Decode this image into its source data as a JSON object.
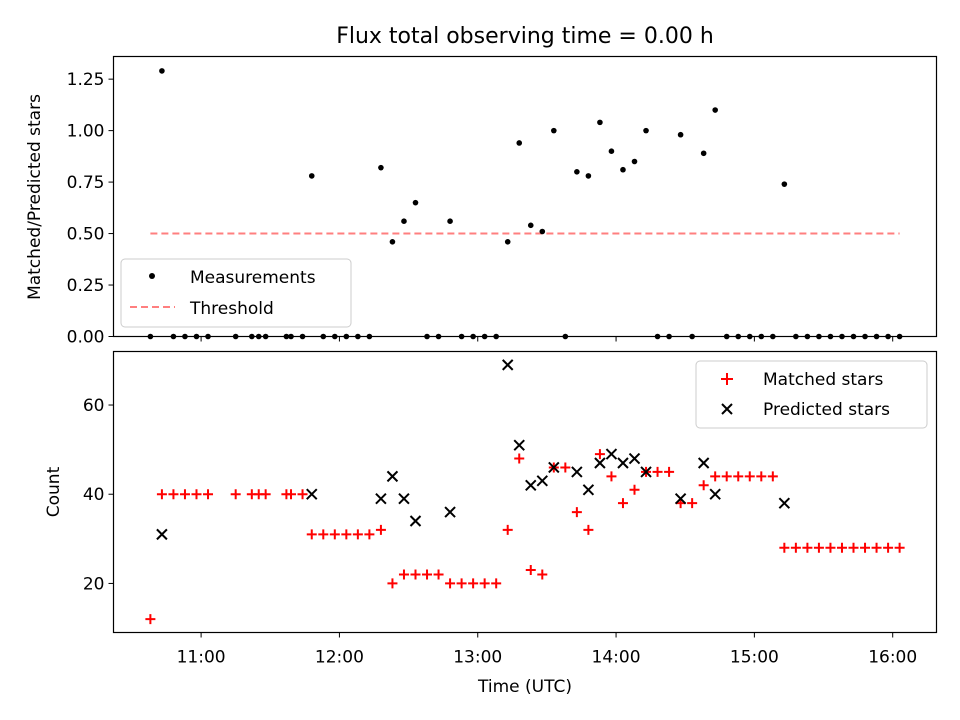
{
  "chart_data": [
    {
      "type": "scatter",
      "title": "Flux total observing time = 0.00 h",
      "xlabel": "",
      "ylabel": "Matched/Predicted stars",
      "ylim": [
        0,
        1.36
      ],
      "yticks": [
        0,
        0.25,
        0.5,
        0.75,
        1.0,
        1.25
      ],
      "ytick_labels": [
        "0.00",
        "0.25",
        "0.50",
        "0.75",
        "1.00",
        "1.25"
      ],
      "grid": false,
      "legend_position": "lower-left",
      "series": [
        {
          "name": "Measurements",
          "marker": "dot",
          "color": "#000000",
          "points": [
            [
              "10:38",
              0
            ],
            [
              "10:43",
              1.29
            ],
            [
              "10:48",
              0
            ],
            [
              "10:53",
              0
            ],
            [
              "10:58",
              0
            ],
            [
              "11:03",
              0
            ],
            [
              "11:15",
              0
            ],
            [
              "11:22",
              0
            ],
            [
              "11:25",
              0
            ],
            [
              "11:28",
              0
            ],
            [
              "11:37",
              0
            ],
            [
              "11:39",
              0
            ],
            [
              "11:44",
              0
            ],
            [
              "11:48",
              0.78
            ],
            [
              "11:53",
              0
            ],
            [
              "11:58",
              0
            ],
            [
              "12:03",
              0
            ],
            [
              "12:08",
              0
            ],
            [
              "12:13",
              0
            ],
            [
              "12:18",
              0.82
            ],
            [
              "12:23",
              0.46
            ],
            [
              "12:28",
              0.56
            ],
            [
              "12:33",
              0.65
            ],
            [
              "12:38",
              0
            ],
            [
              "12:43",
              0
            ],
            [
              "12:48",
              0.56
            ],
            [
              "12:53",
              0
            ],
            [
              "12:58",
              0
            ],
            [
              "13:03",
              0
            ],
            [
              "13:08",
              0
            ],
            [
              "13:13",
              0.46
            ],
            [
              "13:18",
              0.94
            ],
            [
              "13:23",
              0.54
            ],
            [
              "13:28",
              0.51
            ],
            [
              "13:33",
              1.0
            ],
            [
              "13:38",
              0
            ],
            [
              "13:43",
              0.8
            ],
            [
              "13:48",
              0.78
            ],
            [
              "13:53",
              1.04
            ],
            [
              "13:58",
              0.9
            ],
            [
              "14:03",
              0.81
            ],
            [
              "14:08",
              0.85
            ],
            [
              "14:13",
              1.0
            ],
            [
              "14:18",
              0
            ],
            [
              "14:23",
              0
            ],
            [
              "14:28",
              0.98
            ],
            [
              "14:33",
              0
            ],
            [
              "14:38",
              0.89
            ],
            [
              "14:43",
              1.1
            ],
            [
              "14:48",
              0
            ],
            [
              "14:53",
              0
            ],
            [
              "14:58",
              0
            ],
            [
              "15:03",
              0
            ],
            [
              "15:08",
              0
            ],
            [
              "15:13",
              0.74
            ],
            [
              "15:18",
              0
            ],
            [
              "15:23",
              0
            ],
            [
              "15:28",
              0
            ],
            [
              "15:33",
              0
            ],
            [
              "15:38",
              0
            ],
            [
              "15:43",
              0
            ],
            [
              "15:48",
              0
            ],
            [
              "15:53",
              0
            ],
            [
              "15:58",
              0
            ],
            [
              "16:03",
              0
            ]
          ]
        },
        {
          "name": "Threshold",
          "type": "line",
          "dash": true,
          "color": "#ff7f7f",
          "points": [
            [
              "10:38",
              0.5
            ],
            [
              "16:03",
              0.5
            ]
          ]
        }
      ]
    },
    {
      "type": "scatter",
      "title": "",
      "xlabel": "Time (UTC)",
      "ylabel": "Count",
      "ylim": [
        9,
        72
      ],
      "yticks": [
        20,
        40,
        60
      ],
      "ytick_labels": [
        "20",
        "40",
        "60"
      ],
      "xlim": [
        "10:22",
        "16:19"
      ],
      "xticks": [
        "11:00",
        "12:00",
        "13:00",
        "14:00",
        "15:00",
        "16:00"
      ],
      "grid": false,
      "legend_position": "upper-right",
      "series": [
        {
          "name": "Matched stars",
          "marker": "plus",
          "color": "#ff0000",
          "points": [
            [
              "10:38",
              12
            ],
            [
              "10:43",
              40
            ],
            [
              "10:48",
              40
            ],
            [
              "10:53",
              40
            ],
            [
              "10:58",
              40
            ],
            [
              "11:03",
              40
            ],
            [
              "11:15",
              40
            ],
            [
              "11:22",
              40
            ],
            [
              "11:25",
              40
            ],
            [
              "11:28",
              40
            ],
            [
              "11:37",
              40
            ],
            [
              "11:39",
              40
            ],
            [
              "11:44",
              40
            ],
            [
              "11:48",
              31
            ],
            [
              "11:53",
              31
            ],
            [
              "11:58",
              31
            ],
            [
              "12:03",
              31
            ],
            [
              "12:08",
              31
            ],
            [
              "12:13",
              31
            ],
            [
              "12:18",
              32
            ],
            [
              "12:23",
              20
            ],
            [
              "12:28",
              22
            ],
            [
              "12:33",
              22
            ],
            [
              "12:38",
              22
            ],
            [
              "12:43",
              22
            ],
            [
              "12:48",
              20
            ],
            [
              "12:53",
              20
            ],
            [
              "12:58",
              20
            ],
            [
              "13:03",
              20
            ],
            [
              "13:08",
              20
            ],
            [
              "13:13",
              32
            ],
            [
              "13:18",
              48
            ],
            [
              "13:23",
              23
            ],
            [
              "13:28",
              22
            ],
            [
              "13:33",
              46
            ],
            [
              "13:38",
              46
            ],
            [
              "13:43",
              36
            ],
            [
              "13:48",
              32
            ],
            [
              "13:53",
              49
            ],
            [
              "13:58",
              44
            ],
            [
              "14:03",
              38
            ],
            [
              "14:08",
              41
            ],
            [
              "14:13",
              45
            ],
            [
              "14:18",
              45
            ],
            [
              "14:23",
              45
            ],
            [
              "14:28",
              38
            ],
            [
              "14:33",
              38
            ],
            [
              "14:38",
              42
            ],
            [
              "14:43",
              44
            ],
            [
              "14:48",
              44
            ],
            [
              "14:53",
              44
            ],
            [
              "14:58",
              44
            ],
            [
              "15:03",
              44
            ],
            [
              "15:08",
              44
            ],
            [
              "15:13",
              28
            ],
            [
              "15:18",
              28
            ],
            [
              "15:23",
              28
            ],
            [
              "15:28",
              28
            ],
            [
              "15:33",
              28
            ],
            [
              "15:38",
              28
            ],
            [
              "15:43",
              28
            ],
            [
              "15:48",
              28
            ],
            [
              "15:53",
              28
            ],
            [
              "15:58",
              28
            ],
            [
              "16:03",
              28
            ]
          ]
        },
        {
          "name": "Predicted stars",
          "marker": "x",
          "color": "#000000",
          "points": [
            [
              "10:43",
              31
            ],
            [
              "11:48",
              40
            ],
            [
              "12:18",
              39
            ],
            [
              "12:23",
              44
            ],
            [
              "12:28",
              39
            ],
            [
              "12:33",
              34
            ],
            [
              "12:48",
              36
            ],
            [
              "13:13",
              69
            ],
            [
              "13:18",
              51
            ],
            [
              "13:23",
              42
            ],
            [
              "13:28",
              43
            ],
            [
              "13:33",
              46
            ],
            [
              "13:43",
              45
            ],
            [
              "13:48",
              41
            ],
            [
              "13:53",
              47
            ],
            [
              "13:58",
              49
            ],
            [
              "14:03",
              47
            ],
            [
              "14:08",
              48
            ],
            [
              "14:13",
              45
            ],
            [
              "14:28",
              39
            ],
            [
              "14:38",
              47
            ],
            [
              "14:43",
              40
            ],
            [
              "15:13",
              38
            ]
          ]
        }
      ]
    }
  ]
}
